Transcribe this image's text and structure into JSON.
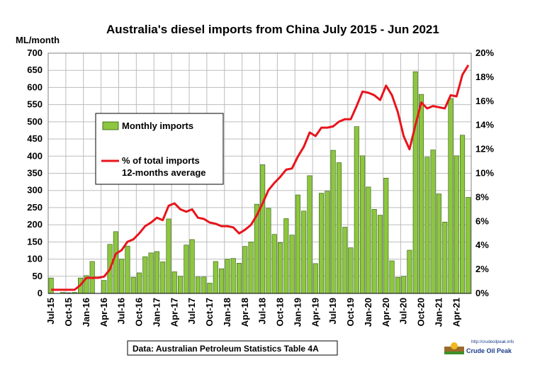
{
  "chart_data": {
    "type": "bar",
    "title": "Australia's  diesel imports  from China July 2015 - Jun 2021",
    "ylabel": "ML/month",
    "ylim": [
      0,
      700
    ],
    "y_ticks": [
      0,
      50,
      100,
      150,
      200,
      250,
      300,
      350,
      400,
      450,
      500,
      550,
      600,
      650,
      700
    ],
    "y2lim": [
      0,
      20
    ],
    "y2_tick_labels": [
      "0%",
      "2%",
      "4%",
      "6%",
      "8%",
      "10%",
      "12%",
      "14%",
      "16%",
      "18%",
      "20%"
    ],
    "grid": true,
    "x_tick_labels": [
      "Jul-15",
      "Oct-15",
      "Jan-16",
      "Apr-16",
      "Jul-16",
      "Oct-16",
      "Jan-17",
      "Apr-17",
      "Jul-17",
      "Oct-17",
      "Jan-18",
      "Apr-18",
      "Jul-18",
      "Oct-18",
      "Jan-19",
      "Apr-19",
      "Jul-19",
      "Oct-19",
      "Jan-20",
      "Apr-20",
      "Jul-20",
      "Oct-20",
      "Jan-21",
      "Apr-21"
    ],
    "categories": [
      "Jul-15",
      "Aug-15",
      "Sep-15",
      "Oct-15",
      "Nov-15",
      "Dec-15",
      "Jan-16",
      "Feb-16",
      "Mar-16",
      "Apr-16",
      "May-16",
      "Jun-16",
      "Jul-16",
      "Aug-16",
      "Sep-16",
      "Oct-16",
      "Nov-16",
      "Dec-16",
      "Jan-17",
      "Feb-17",
      "Mar-17",
      "Apr-17",
      "May-17",
      "Jun-17",
      "Jul-17",
      "Aug-17",
      "Sep-17",
      "Oct-17",
      "Nov-17",
      "Dec-17",
      "Jan-18",
      "Feb-18",
      "Mar-18",
      "Apr-18",
      "May-18",
      "Jun-18",
      "Jul-18",
      "Aug-18",
      "Sep-18",
      "Oct-18",
      "Nov-18",
      "Dec-18",
      "Jan-19",
      "Feb-19",
      "Mar-19",
      "Apr-19",
      "May-19",
      "Jun-19",
      "Jul-19",
      "Aug-19",
      "Sep-19",
      "Oct-19",
      "Nov-19",
      "Dec-19",
      "Jan-20",
      "Feb-20",
      "Mar-20",
      "Apr-20",
      "May-20",
      "Jun-20",
      "Jul-20",
      "Aug-20",
      "Sep-20",
      "Oct-20",
      "Nov-20",
      "Dec-20",
      "Jan-21",
      "Feb-21",
      "Mar-21",
      "Apr-21",
      "May-21",
      "Jun-21"
    ],
    "series": [
      {
        "name": "Monthly imports",
        "type": "bar",
        "axis": "left",
        "color": "#8dc63f",
        "values": [
          45,
          0,
          3,
          2,
          3,
          45,
          52,
          93,
          0,
          38,
          143,
          180,
          100,
          138,
          47,
          60,
          107,
          118,
          122,
          92,
          217,
          63,
          50,
          141,
          157,
          48,
          48,
          30,
          93,
          72,
          100,
          102,
          88,
          137,
          150,
          260,
          375,
          248,
          172,
          148,
          218,
          170,
          287,
          240,
          343,
          87,
          292,
          298,
          417,
          381,
          193,
          133,
          486,
          401,
          310,
          245,
          228,
          336,
          95,
          47,
          50,
          126,
          646,
          580,
          397,
          418,
          290,
          208,
          568,
          401,
          461,
          280
        ]
      },
      {
        "name": "% of total imports 12-months average",
        "type": "line",
        "axis": "right",
        "color": "#e8141c",
        "values": [
          0.3,
          0.3,
          0.3,
          0.3,
          0.3,
          0.7,
          1.3,
          1.3,
          1.3,
          1.4,
          2.0,
          3.3,
          3.6,
          4.3,
          4.5,
          5.0,
          5.6,
          5.9,
          6.3,
          6.1,
          7.3,
          7.5,
          7.0,
          6.8,
          7.0,
          6.3,
          6.2,
          5.9,
          5.8,
          5.6,
          5.6,
          5.5,
          5.0,
          5.3,
          5.7,
          6.5,
          7.5,
          8.6,
          9.2,
          9.7,
          10.3,
          10.4,
          11.4,
          12.2,
          13.4,
          13.1,
          13.8,
          13.8,
          13.9,
          14.3,
          14.5,
          14.5,
          15.6,
          16.8,
          16.7,
          16.5,
          16.1,
          17.3,
          16.5,
          15.1,
          13.1,
          12.0,
          14.0,
          15.9,
          15.4,
          15.6,
          15.5,
          15.4,
          16.5,
          16.4,
          18.2,
          19.0
        ]
      }
    ],
    "legend": {
      "position": "left-center",
      "bar_label": "Monthly imports",
      "line_label_1": "% of total imports",
      "line_label_2": "12-months average"
    },
    "annotations": {
      "source": "Data: Australian Petroleum Statistics Table 4A",
      "logo_url_text": "http://crudeoilpeak.info",
      "logo_name": "Crude Oil Peak"
    }
  },
  "colors": {
    "bar": "#8dc63f",
    "bar_stroke": "#2e5a10",
    "line": "#e8141c",
    "grid": "#bdbdbd",
    "logo": "#1a3c8c"
  }
}
